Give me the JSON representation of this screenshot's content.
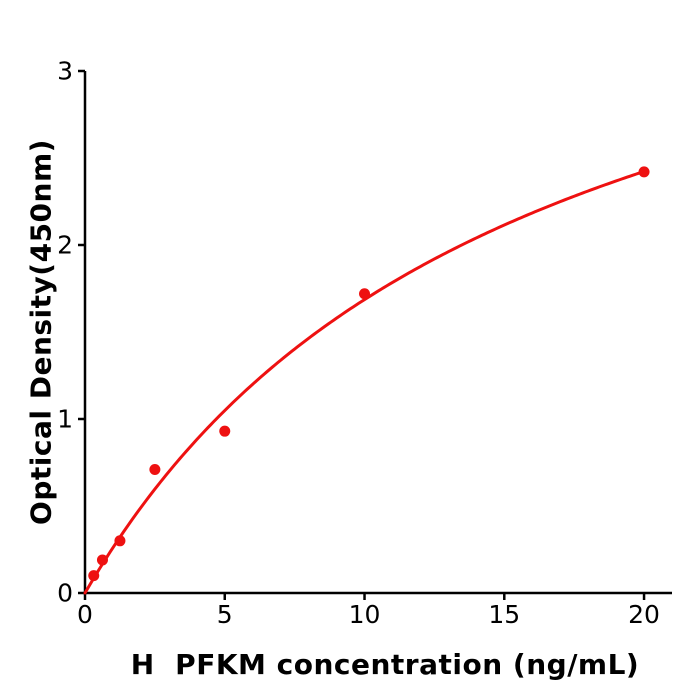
{
  "figure": {
    "background": "#ffffff"
  },
  "chart_data": {
    "type": "scatter",
    "title": "",
    "xlabel": "H  PFKM concentration (ng/mL)",
    "ylabel": "Optical Density(450nm)",
    "xlim": [
      0,
      21
    ],
    "ylim": [
      0,
      3
    ],
    "xticks": [
      0,
      5,
      10,
      15,
      20
    ],
    "yticks": [
      0,
      1,
      2,
      3
    ],
    "grid": false,
    "legend": null,
    "series": [
      {
        "name": "standard-points",
        "type": "scatter",
        "color": "#ee1111",
        "x": [
          0.313,
          0.625,
          1.25,
          2.5,
          5,
          10,
          20
        ],
        "y": [
          0.1,
          0.19,
          0.3,
          0.71,
          0.93,
          1.72,
          2.42
        ]
      },
      {
        "name": "fitted-curve",
        "type": "line",
        "color": "#ee1111",
        "fit": {
          "model": "michaelis-menten",
          "vmax": 4.3,
          "km": 15.5,
          "x_start": 0,
          "x_end": 20
        }
      }
    ]
  },
  "colors": {
    "accent": "#ee1111",
    "axis": "#000000",
    "background": "#ffffff"
  }
}
